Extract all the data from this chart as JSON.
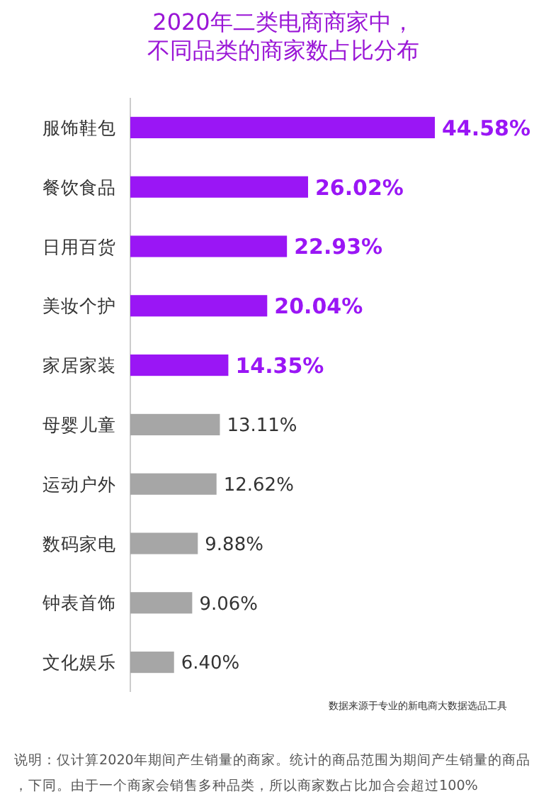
{
  "chart_data": {
    "type": "bar",
    "orientation": "horizontal",
    "title": "2020年二类电商商家中，不同品类的商家数占比分布",
    "categories": [
      "服饰鞋包",
      "餐饮食品",
      "日用百货",
      "美妆个护",
      "家居家装",
      "母婴儿童",
      "运动户外",
      "数码家电",
      "钟表首饰",
      "文化娱乐"
    ],
    "values": [
      44.58,
      26.02,
      22.93,
      20.04,
      14.35,
      13.11,
      12.62,
      9.88,
      9.06,
      6.4
    ],
    "value_labels": [
      "44.58%",
      "26.02%",
      "22.93%",
      "20.04%",
      "14.35%",
      "13.11%",
      "12.62%",
      "9.88%",
      "9.06%",
      "6.40%"
    ],
    "colors": [
      "#9a16f5",
      "#9a16f5",
      "#9a16f5",
      "#9a16f5",
      "#9a16f5",
      "#a6a6a6",
      "#a6a6a6",
      "#a6a6a6",
      "#a6a6a6",
      "#a6a6a6"
    ],
    "annotations": [
      "数据来源于专业的新电商大数据选品工具",
      "说明：仅计算2020年期间产生销量的商家。统计的商品范围为期间产生销量的商品，下同。由于一个商家会销售多种品类，所以商家数占比加合会超过100%"
    ]
  }
}
